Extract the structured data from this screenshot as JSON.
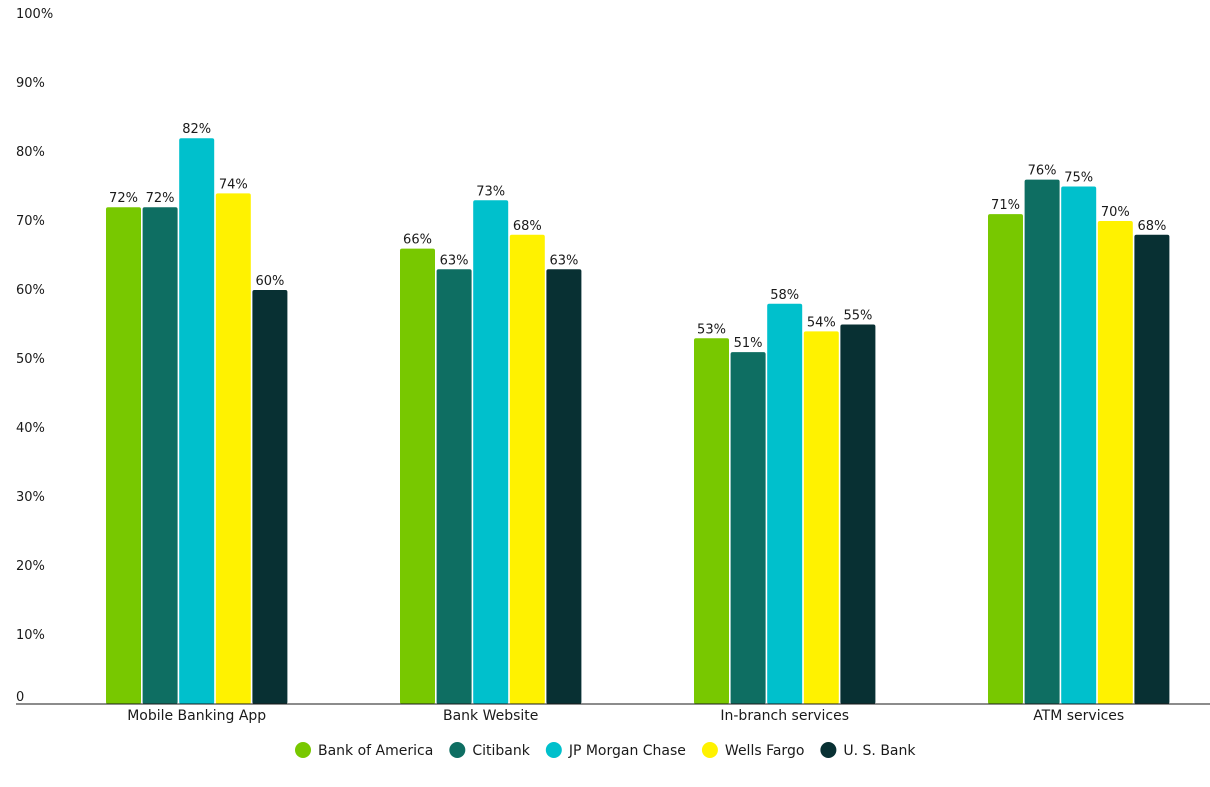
{
  "chart_data": {
    "type": "bar",
    "title": "",
    "xlabel": "",
    "ylabel": "",
    "ylim": [
      0,
      100
    ],
    "y_ticks": [
      {
        "value": 0,
        "label": "0"
      },
      {
        "value": 10,
        "label": "10%"
      },
      {
        "value": 20,
        "label": "20%"
      },
      {
        "value": 30,
        "label": "30%"
      },
      {
        "value": 40,
        "label": "40%"
      },
      {
        "value": 50,
        "label": "50%"
      },
      {
        "value": 60,
        "label": "60%"
      },
      {
        "value": 70,
        "label": "70%"
      },
      {
        "value": 80,
        "label": "80%"
      },
      {
        "value": 90,
        "label": "90%"
      },
      {
        "value": 100,
        "label": "100%"
      }
    ],
    "grid": false,
    "legend_position": "bottom-center",
    "categories": [
      "Mobile Banking App",
      "Bank Website",
      "In-branch services",
      "ATM services"
    ],
    "series": [
      {
        "name": "Bank of America",
        "color": "#78c800",
        "values": [
          72,
          66,
          53,
          71
        ],
        "labels": [
          "72%",
          "66%",
          "53%",
          "71%"
        ]
      },
      {
        "name": "Citibank",
        "color": "#0e6e62",
        "values": [
          72,
          63,
          51,
          76
        ],
        "labels": [
          "72%",
          "63%",
          "51%",
          "76%"
        ]
      },
      {
        "name": "JP Morgan Chase",
        "color": "#00c0cc",
        "values": [
          82,
          73,
          58,
          75
        ],
        "labels": [
          "82%",
          "73%",
          "58%",
          "75%"
        ]
      },
      {
        "name": "Wells Fargo",
        "color": "#fff200",
        "values": [
          74,
          68,
          54,
          70
        ],
        "labels": [
          "74%",
          "68%",
          "54%",
          "70%"
        ]
      },
      {
        "name": "U. S. Bank",
        "color": "#083033",
        "values": [
          60,
          63,
          55,
          68
        ],
        "labels": [
          "60%",
          "63%",
          "55%",
          "68%"
        ]
      }
    ]
  }
}
